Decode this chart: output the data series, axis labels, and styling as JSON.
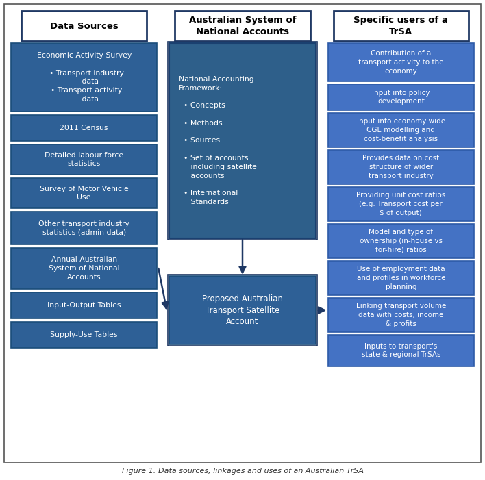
{
  "title": "Figure 1: Data sources, linkages and uses of an Australian TrSA",
  "col1_header": "Data Sources",
  "col2_header": "Australian System of\nNational Accounts",
  "col3_header": "Specific users of a\nTrSA",
  "col1_boxes": [
    "Economic Activity Survey\n\n  • Transport industry\n     data\n  • Transport activity\n     data",
    "2011 Census",
    "Detailed labour force\nstatistics",
    "Survey of Motor Vehicle\nUse",
    "Other transport industry\nstatistics (admin data)",
    "Annual Australian\nSystem of National\nAccounts",
    "Input-Output Tables",
    "Supply-Use Tables"
  ],
  "col2_top_box": "National Accounting\nFramework:\n\n  • Concepts\n\n  • Methods\n\n  • Sources\n\n  • Set of accounts\n     including satellite\n     accounts\n\n  • International\n     Standards",
  "col2_bottom_box": "Proposed Australian\nTransport Satellite\nAccount",
  "col3_boxes": [
    "Contribution of a\ntransport activity to the\neconomy",
    "Input into policy\ndevelopment",
    "Input into economy wide\nCGE modelling and\ncost-benefit analysis",
    "Provides data on cost\nstructure of wider\ntransport industry",
    "Providing unit cost ratios\n(e.g. Transport cost per\n$ of output)",
    "Model and type of\nownership (in-house vs\nfor-hire) ratios",
    "Use of employment data\nand profiles in workforce\nplanning",
    "Linking transport volume\ndata with costs, income\n& profits",
    "Inputs to transport's\nstate & regional TrSAs"
  ],
  "bg_color": "#ffffff",
  "header_box_fill": "#ffffff",
  "header_box_edge": "#1f3864",
  "col1_box_color": "#2e6096",
  "col1_box_edge": "#1a4d7a",
  "col2_top_color": "#2e5f8a",
  "col2_top_edge": "#1a4070",
  "col2_bot_color": "#2e6096",
  "col2_bot_edge": "#1a4d7a",
  "col3_box_color": "#4472c4",
  "col3_box_edge": "#2e5ba8",
  "header_text_color": "#000000",
  "white_text": "#ffffff",
  "arrow_color": "#1f3864",
  "outer_border_color": "#555555",
  "col1_heights": [
    100,
    38,
    44,
    44,
    48,
    60,
    38,
    38
  ],
  "col3_heights": [
    56,
    38,
    50,
    50,
    50,
    50,
    50,
    50,
    46
  ]
}
